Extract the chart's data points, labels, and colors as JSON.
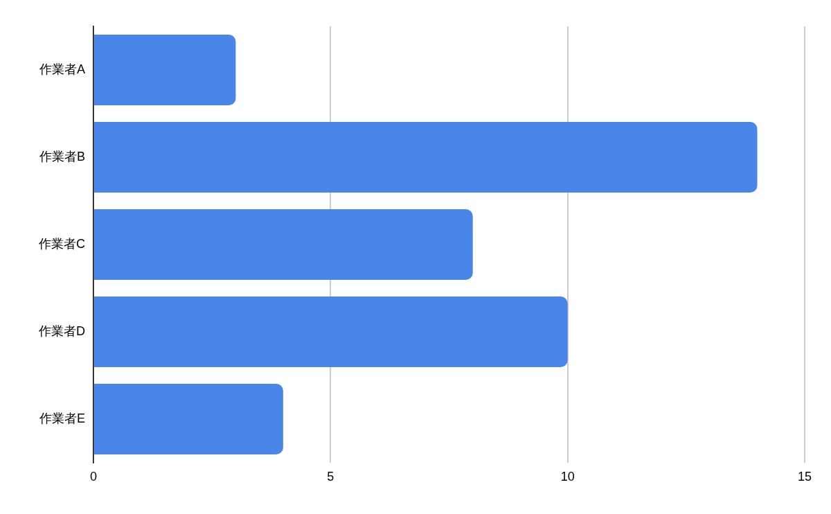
{
  "chart_data": {
    "type": "bar",
    "orientation": "horizontal",
    "categories": [
      "作業者A",
      "作業者B",
      "作業者C",
      "作業者D",
      "作業者E"
    ],
    "values": [
      3,
      14,
      8,
      10,
      4
    ],
    "color": "#4a86e8",
    "xlim": [
      0,
      15
    ],
    "xticks": [
      0,
      5,
      10,
      15
    ],
    "grid": "x",
    "legend": false
  }
}
